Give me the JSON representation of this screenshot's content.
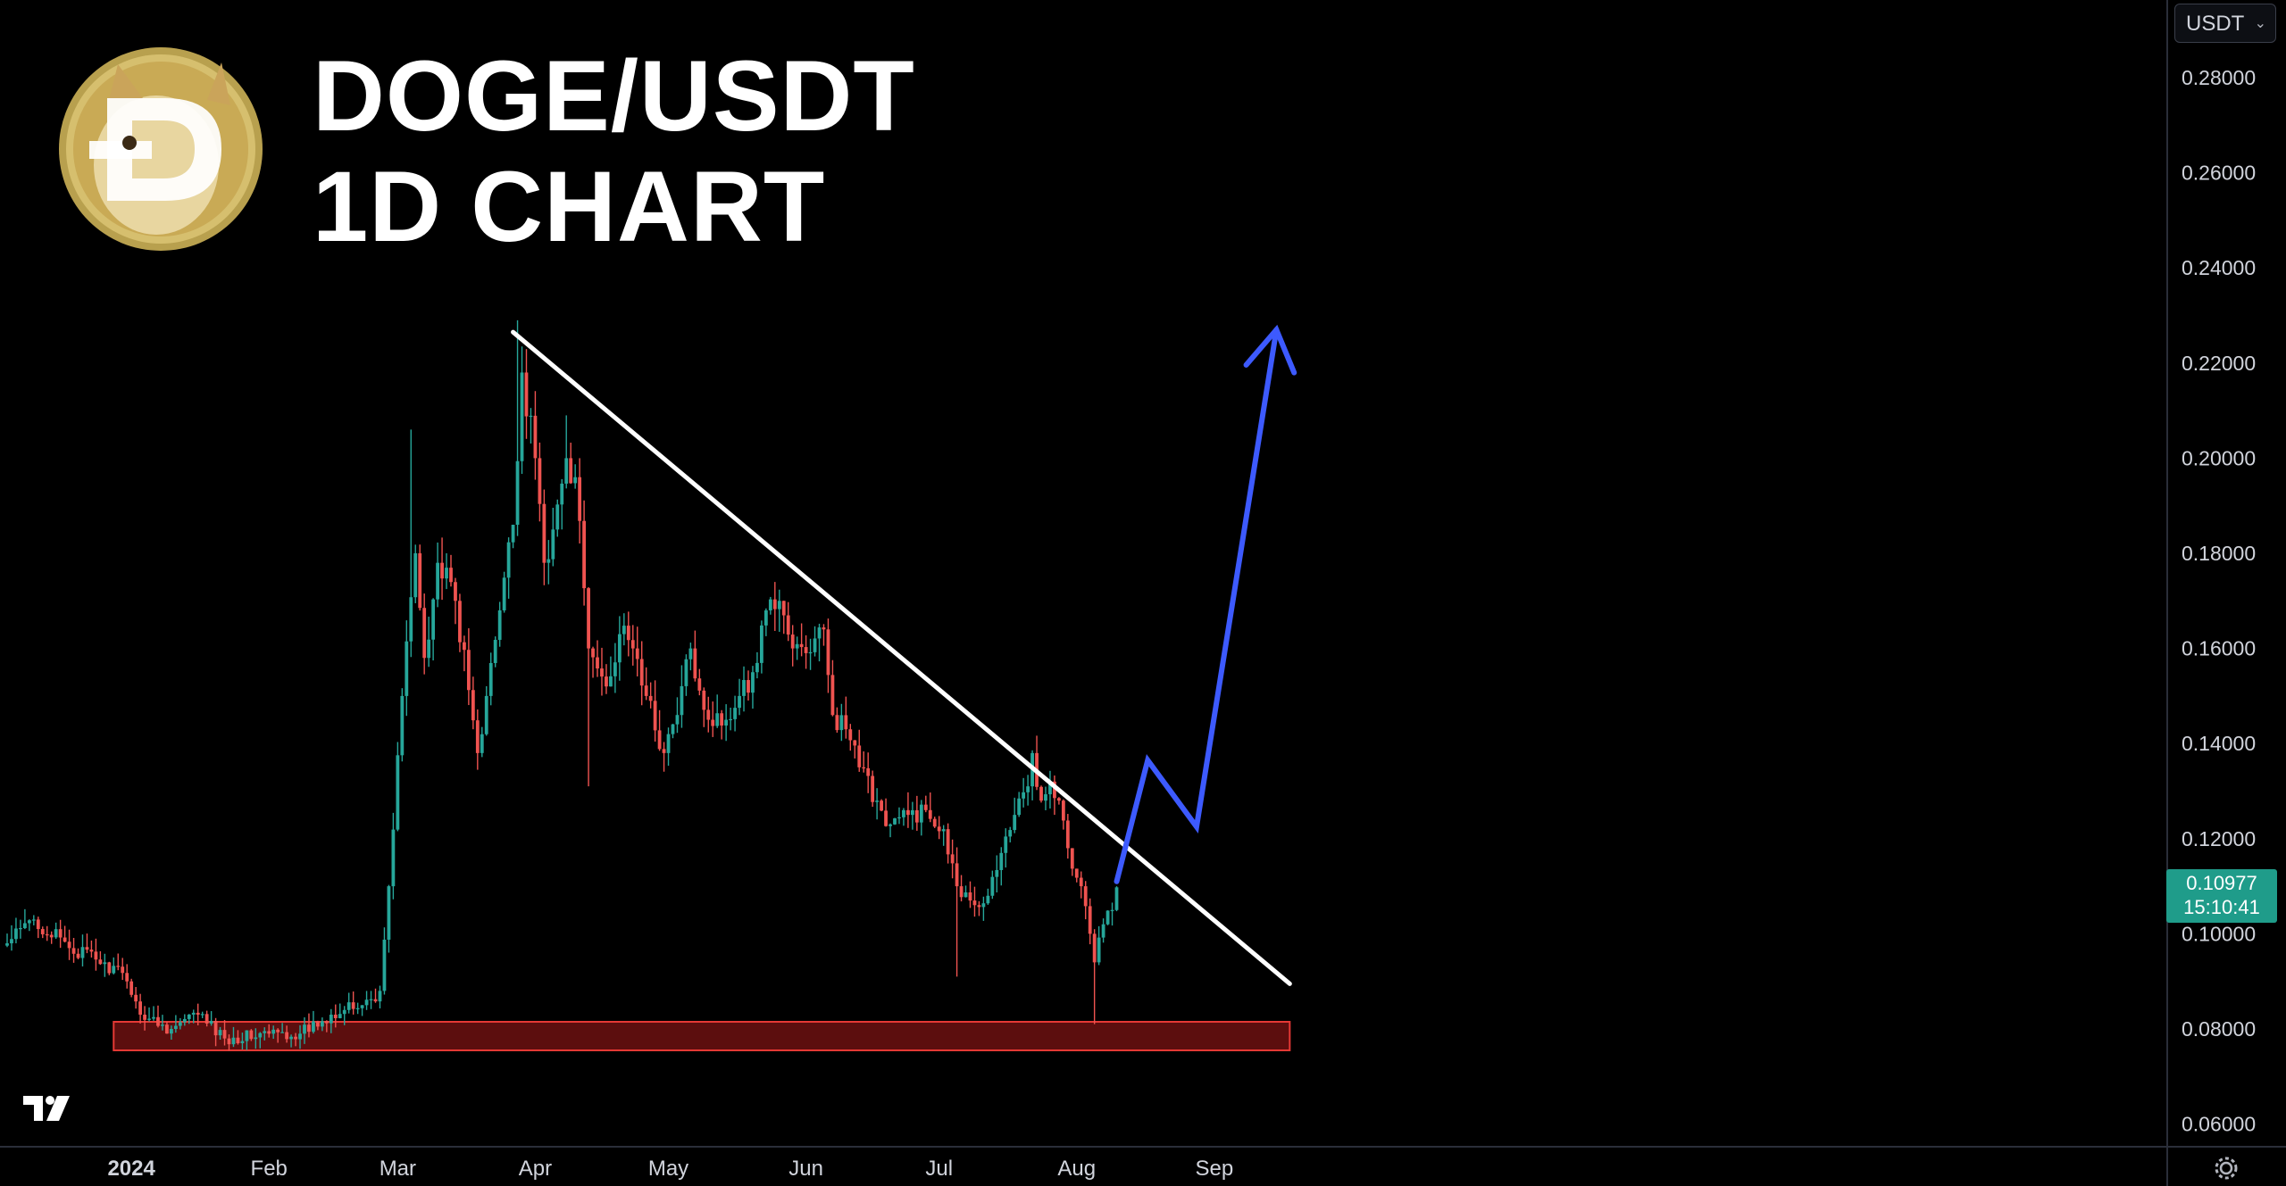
{
  "title": {
    "line1": "DOGE/USDT",
    "line2": "1D CHART"
  },
  "currency_selector": {
    "label": "USDT"
  },
  "last_price": {
    "price": "0.10977",
    "countdown": "15:10:41"
  },
  "icons": {
    "logo": "doge-coin-logo",
    "brand": "tradingview-logo-icon",
    "settings": "gear-icon",
    "dropdown": "chevron-down-icon"
  },
  "colors": {
    "background": "#000000",
    "up_candle": "#26a69a",
    "down_candle": "#ef5350",
    "trendline": "#ffffff",
    "projection": "#3d5afe",
    "support_zone": "#b71c1c",
    "price_tag": "#1f9c8a",
    "axis_text": "#d1d4dc"
  },
  "chart_data": {
    "type": "candlestick",
    "pair": "DOGE/USDT",
    "timeframe": "1D",
    "y_axis": {
      "min": 0.05,
      "max": 0.29,
      "ticks": [
        "0.28000",
        "0.26000",
        "0.24000",
        "0.22000",
        "0.20000",
        "0.18000",
        "0.16000",
        "0.14000",
        "0.12000",
        "0.10000",
        "0.08000",
        "0.06000"
      ]
    },
    "x_axis": {
      "start": "2023-12-04",
      "end": "2024-09-22",
      "ticks": [
        {
          "label": "2024",
          "date": "2024-01-01",
          "bold": true
        },
        {
          "label": "Feb",
          "date": "2024-02-01"
        },
        {
          "label": "Mar",
          "date": "2024-03-01"
        },
        {
          "label": "Apr",
          "date": "2024-04-01"
        },
        {
          "label": "May",
          "date": "2024-05-01"
        },
        {
          "label": "Jun",
          "date": "2024-06-01"
        },
        {
          "label": "Jul",
          "date": "2024-07-01"
        },
        {
          "label": "Aug",
          "date": "2024-08-01"
        },
        {
          "label": "Sep",
          "date": "2024-09-01"
        }
      ]
    },
    "close_anchors": [
      [
        "2023-12-04",
        0.098
      ],
      [
        "2023-12-10",
        0.103
      ],
      [
        "2023-12-18",
        0.097
      ],
      [
        "2023-12-26",
        0.094
      ],
      [
        "2023-12-31",
        0.09
      ],
      [
        "2024-01-03",
        0.083
      ],
      [
        "2024-01-10",
        0.08
      ],
      [
        "2024-01-16",
        0.083
      ],
      [
        "2024-01-22",
        0.078
      ],
      [
        "2024-02-01",
        0.079
      ],
      [
        "2024-02-08",
        0.079
      ],
      [
        "2024-02-15",
        0.083
      ],
      [
        "2024-02-22",
        0.085
      ],
      [
        "2024-02-26",
        0.088
      ],
      [
        "2024-02-28",
        0.11
      ],
      [
        "2024-03-02",
        0.15
      ],
      [
        "2024-03-05",
        0.18
      ],
      [
        "2024-03-07",
        0.158
      ],
      [
        "2024-03-10",
        0.178
      ],
      [
        "2024-03-14",
        0.17
      ],
      [
        "2024-03-19",
        0.138
      ],
      [
        "2024-03-21",
        0.15
      ],
      [
        "2024-03-24",
        0.168
      ],
      [
        "2024-03-27",
        0.186
      ],
      [
        "2024-03-29",
        0.218
      ],
      [
        "2024-04-01",
        0.2
      ],
      [
        "2024-04-03",
        0.178
      ],
      [
        "2024-04-05",
        0.185
      ],
      [
        "2024-04-08",
        0.2
      ],
      [
        "2024-04-10",
        0.196
      ],
      [
        "2024-04-13",
        0.16
      ],
      [
        "2024-04-17",
        0.152
      ],
      [
        "2024-04-20",
        0.163
      ],
      [
        "2024-04-23",
        0.16
      ],
      [
        "2024-04-26",
        0.15
      ],
      [
        "2024-04-30",
        0.138
      ],
      [
        "2024-05-03",
        0.146
      ],
      [
        "2024-05-06",
        0.16
      ],
      [
        "2024-05-10",
        0.145
      ],
      [
        "2024-05-14",
        0.145
      ],
      [
        "2024-05-17",
        0.15
      ],
      [
        "2024-05-20",
        0.155
      ],
      [
        "2024-05-23",
        0.168
      ],
      [
        "2024-05-26",
        0.17
      ],
      [
        "2024-05-29",
        0.16
      ],
      [
        "2024-06-01",
        0.159
      ],
      [
        "2024-06-05",
        0.164
      ],
      [
        "2024-06-07",
        0.146
      ],
      [
        "2024-06-10",
        0.143
      ],
      [
        "2024-06-13",
        0.135
      ],
      [
        "2024-06-17",
        0.128
      ],
      [
        "2024-06-20",
        0.123
      ],
      [
        "2024-06-24",
        0.125
      ],
      [
        "2024-06-28",
        0.126
      ],
      [
        "2024-07-02",
        0.122
      ],
      [
        "2024-07-05",
        0.11
      ],
      [
        "2024-07-08",
        0.107
      ],
      [
        "2024-07-12",
        0.108
      ],
      [
        "2024-07-15",
        0.117
      ],
      [
        "2024-07-18",
        0.125
      ],
      [
        "2024-07-21",
        0.131
      ],
      [
        "2024-07-22",
        0.138
      ],
      [
        "2024-07-24",
        0.128
      ],
      [
        "2024-07-26",
        0.132
      ],
      [
        "2024-07-28",
        0.128
      ],
      [
        "2024-07-30",
        0.118
      ],
      [
        "2024-08-02",
        0.11
      ],
      [
        "2024-08-04",
        0.1
      ],
      [
        "2024-08-05",
        0.094
      ],
      [
        "2024-08-07",
        0.102
      ],
      [
        "2024-08-09",
        0.105
      ],
      [
        "2024-08-10",
        0.10977
      ]
    ],
    "last_price": 0.10977,
    "annotations": {
      "resistance_trendline": {
        "from": {
          "date": "2024-03-27",
          "price": 0.2265
        },
        "to": {
          "date": "2024-09-18",
          "price": 0.0895
        }
      },
      "support_zone": {
        "from_date": "2023-12-28",
        "to_date": "2024-09-18",
        "low": 0.0755,
        "high": 0.0815
      },
      "projection_path": [
        {
          "date": "2024-08-10",
          "price": 0.111
        },
        {
          "date": "2024-08-17",
          "price": 0.1365
        },
        {
          "date": "2024-08-28",
          "price": 0.1225
        },
        {
          "date": "2024-09-15",
          "price": 0.227
        }
      ]
    },
    "grid": false,
    "legend": "none"
  }
}
